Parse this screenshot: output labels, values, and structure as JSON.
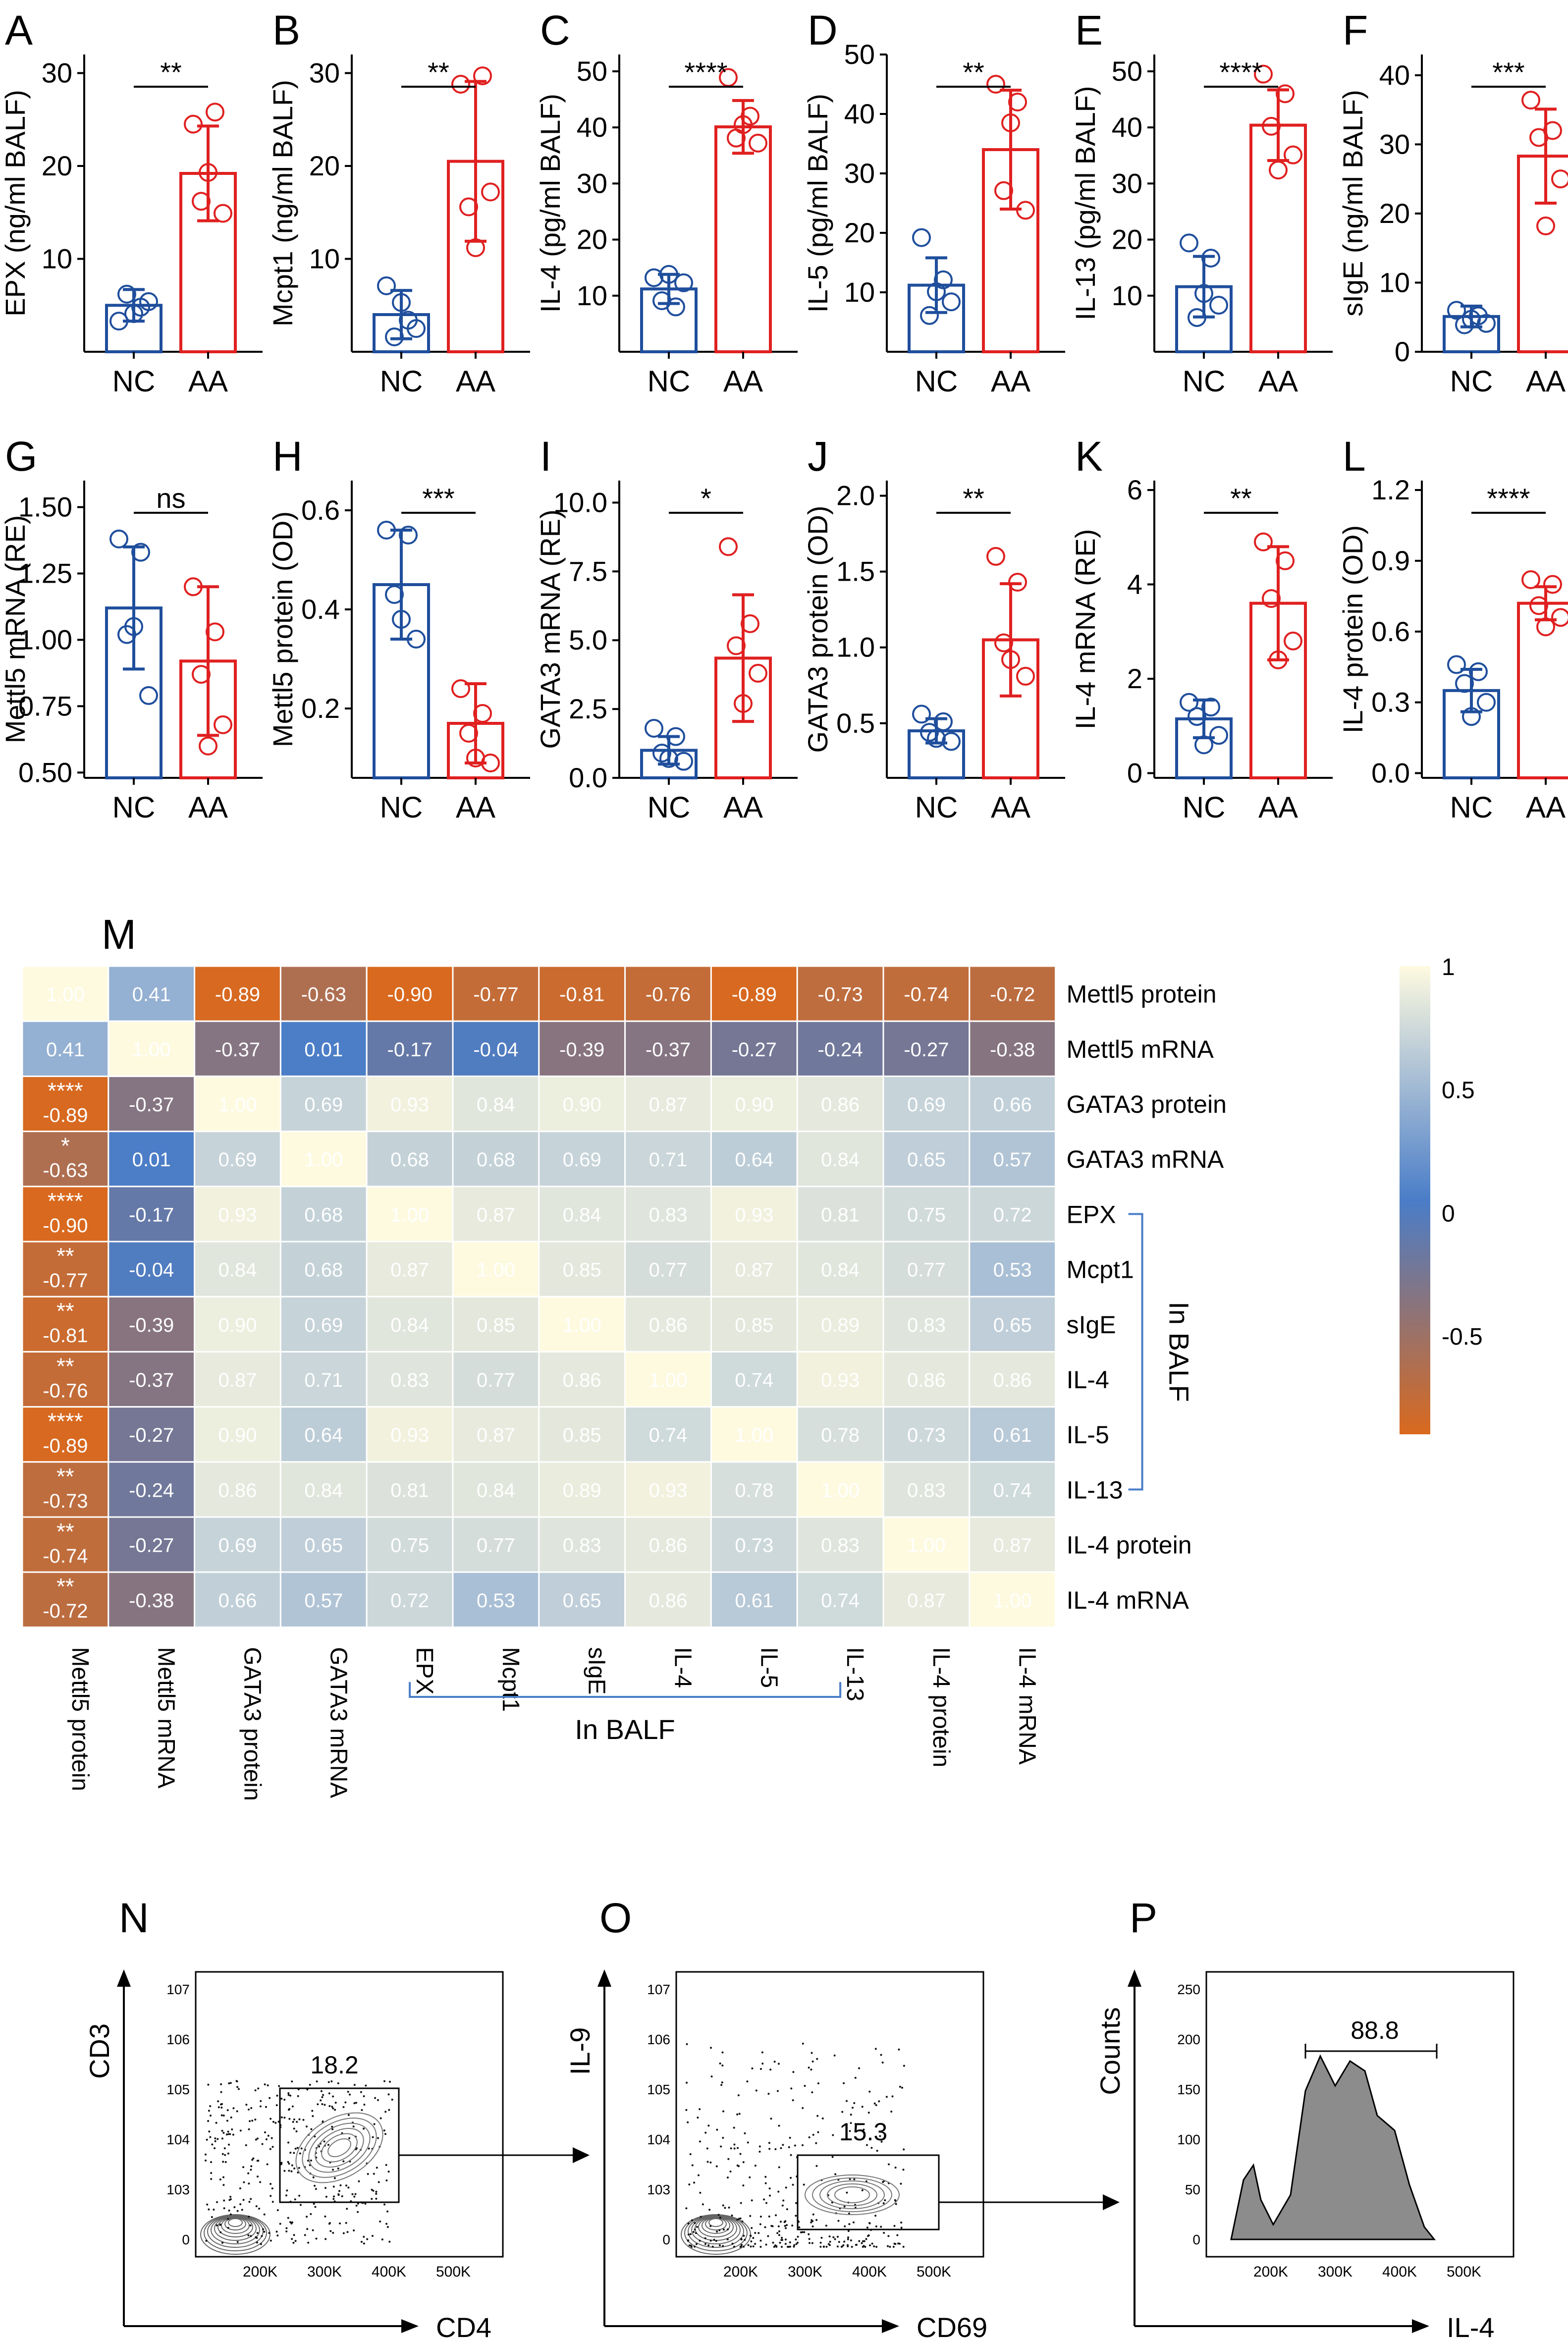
{
  "colors": {
    "nc": "#1f4e9c",
    "aa": "#e02020",
    "axis": "#000000",
    "hm_neg": "#d9691e",
    "hm_mid": "#4a7dc8",
    "hm_pos": "#fefae0",
    "gate_arrow": "#000000"
  },
  "group_labels": [
    "NC",
    "AA"
  ],
  "bar_panels": [
    {
      "letter": "A",
      "ylabel": "EPX (ng/ml BALF)",
      "ylim": [
        0,
        32
      ],
      "ticks": [
        10,
        20,
        30
      ],
      "nc": {
        "mean": 5.0,
        "sd": 1.7,
        "points": [
          3.3,
          4.8,
          6.2,
          5.4,
          4.1
        ]
      },
      "aa": {
        "mean": 19.2,
        "sd": 5.1,
        "points": [
          24.5,
          25.8,
          16.2,
          14.9,
          19.3
        ]
      },
      "sig": "**"
    },
    {
      "letter": "B",
      "ylabel": "Mcpt1 (ng/ml BALF)",
      "ylim": [
        0,
        32
      ],
      "ticks": [
        10,
        20,
        30
      ],
      "nc": {
        "mean": 4.0,
        "sd": 2.6,
        "points": [
          7.1,
          3.4,
          1.6,
          2.5,
          5.3
        ]
      },
      "aa": {
        "mean": 20.5,
        "sd": 8.6,
        "points": [
          28.8,
          29.7,
          15.6,
          17.2,
          11.2
        ]
      },
      "sig": "**"
    },
    {
      "letter": "C",
      "ylabel": "IL-4 (pg/ml BALF)",
      "ylim": [
        0,
        53
      ],
      "ticks": [
        10,
        20,
        30,
        40,
        50
      ],
      "nc": {
        "mean": 11.2,
        "sd": 2.6,
        "points": [
          13.2,
          8.0,
          9.1,
          12.3,
          13.8
        ]
      },
      "aa": {
        "mean": 40.1,
        "sd": 4.7,
        "points": [
          48.9,
          42.0,
          38.1,
          37.2,
          40.5
        ]
      },
      "sig": "****"
    },
    {
      "letter": "D",
      "ylabel": "IL-5 (pg/ml BALF)",
      "ylim": [
        0,
        50
      ],
      "ticks": [
        10,
        20,
        30,
        40,
        50
      ],
      "nc": {
        "mean": 11.2,
        "sd": 4.6,
        "points": [
          19.2,
          12.1,
          6.1,
          8.4,
          10.1
        ]
      },
      "aa": {
        "mean": 34.0,
        "sd": 10.0,
        "points": [
          45.0,
          42.0,
          27.1,
          23.8,
          38.5
        ]
      },
      "sig": "**"
    },
    {
      "letter": "E",
      "ylabel": "IL-13 (pg/ml BALF)",
      "ylim": [
        0,
        53
      ],
      "ticks": [
        10,
        20,
        30,
        40,
        50
      ],
      "nc": {
        "mean": 11.6,
        "sd": 5.4,
        "points": [
          19.4,
          16.7,
          6.1,
          8.3,
          10.4
        ]
      },
      "aa": {
        "mean": 40.4,
        "sd": 6.3,
        "points": [
          49.5,
          46.0,
          40.2,
          35.1,
          32.4
        ]
      },
      "sig": "****"
    },
    {
      "letter": "F",
      "ylabel": "sIgE (ng/ml BALF)",
      "ylim": [
        0,
        43
      ],
      "ticks": [
        0,
        10,
        20,
        30,
        40
      ],
      "nc": {
        "mean": 5.1,
        "sd": 1.5,
        "points": [
          6.0,
          5.2,
          3.9,
          4.1,
          4.7
        ]
      },
      "aa": {
        "mean": 28.3,
        "sd": 6.8,
        "points": [
          36.4,
          32.0,
          31.0,
          25.0,
          18.2
        ]
      },
      "sig": "***"
    },
    {
      "letter": "G",
      "ylabel": "Mettl5 mRNA (RE)",
      "ylim": [
        0.48,
        1.6
      ],
      "ticks": [
        0.5,
        0.75,
        1.0,
        1.25,
        1.5
      ],
      "tick_labels": [
        "0.50",
        "0.75",
        "1.00",
        "1.25",
        "1.50"
      ],
      "nc": {
        "mean": 1.12,
        "sd": 0.23,
        "points": [
          1.38,
          1.33,
          1.02,
          0.79,
          1.05
        ]
      },
      "aa": {
        "mean": 0.92,
        "sd": 0.28,
        "points": [
          1.2,
          1.03,
          0.87,
          0.68,
          0.6
        ]
      },
      "sig": "ns"
    },
    {
      "letter": "H",
      "ylabel": "Mettl5 protein (OD)",
      "ylim": [
        0.06,
        0.66
      ],
      "ticks": [
        0.2,
        0.4,
        0.6
      ],
      "tick_labels": [
        "0.2",
        "0.4",
        "0.6"
      ],
      "nc": {
        "mean": 0.45,
        "sd": 0.11,
        "points": [
          0.56,
          0.55,
          0.43,
          0.34,
          0.38
        ]
      },
      "aa": {
        "mean": 0.17,
        "sd": 0.08,
        "points": [
          0.24,
          0.19,
          0.15,
          0.09,
          0.1
        ]
      },
      "sig": "***"
    },
    {
      "letter": "I",
      "ylabel": "GATA3 mRNA (RE)",
      "ylim": [
        0,
        10.8
      ],
      "ticks": [
        0,
        2.5,
        5.0,
        7.5,
        10.0
      ],
      "tick_labels": [
        "0.0",
        "2.5",
        "5.0",
        "7.5",
        "10.0"
      ],
      "nc": {
        "mean": 1.0,
        "sd": 0.5,
        "points": [
          1.8,
          1.5,
          0.9,
          0.6,
          0.7
        ]
      },
      "aa": {
        "mean": 4.35,
        "sd": 2.3,
        "points": [
          8.4,
          5.6,
          4.8,
          3.8,
          2.7
        ]
      },
      "sig": "*"
    },
    {
      "letter": "J",
      "ylabel": "GATA3 protein (OD)",
      "ylim": [
        0.14,
        2.1
      ],
      "ticks": [
        0.5,
        1.0,
        1.5,
        2.0
      ],
      "tick_labels": [
        "0.5",
        "1.0",
        "1.5",
        "2.0"
      ],
      "nc": {
        "mean": 0.45,
        "sd": 0.08,
        "points": [
          0.56,
          0.51,
          0.44,
          0.38,
          0.4
        ]
      },
      "aa": {
        "mean": 1.05,
        "sd": 0.37,
        "points": [
          1.6,
          1.43,
          1.03,
          0.81,
          0.92
        ]
      },
      "sig": "**"
    },
    {
      "letter": "K",
      "ylabel": "IL-4 mRNA (RE)",
      "ylim": [
        -0.1,
        6.2
      ],
      "ticks": [
        0,
        2,
        4,
        6
      ],
      "tick_labels": [
        "0",
        "2",
        "4",
        "6"
      ],
      "nc": {
        "mean": 1.15,
        "sd": 0.4,
        "points": [
          1.5,
          1.4,
          1.2,
          0.8,
          0.6
        ]
      },
      "aa": {
        "mean": 3.6,
        "sd": 1.2,
        "points": [
          4.9,
          4.5,
          3.7,
          2.8,
          2.4
        ]
      },
      "sig": "**"
    },
    {
      "letter": "L",
      "ylabel": "IL-4 protein (OD)",
      "ylim": [
        -0.02,
        1.24
      ],
      "ticks": [
        0.0,
        0.3,
        0.6,
        0.9,
        1.2
      ],
      "tick_labels": [
        "0.0",
        "0.3",
        "0.6",
        "0.9",
        "1.2"
      ],
      "nc": {
        "mean": 0.35,
        "sd": 0.09,
        "points": [
          0.46,
          0.43,
          0.38,
          0.3,
          0.24
        ]
      },
      "aa": {
        "mean": 0.72,
        "sd": 0.07,
        "points": [
          0.82,
          0.8,
          0.71,
          0.66,
          0.62
        ]
      },
      "sig": "****"
    }
  ],
  "chart_data": {
    "type": "heatmap",
    "title": "M",
    "row_labels": [
      "Mettl5 protein",
      "Mettl5 mRNA",
      "GATA3 protein",
      "GATA3 mRNA",
      "EPX",
      "Mcpt1",
      "sIgE",
      "IL-4",
      "IL-5",
      "IL-13",
      "IL-4 protein",
      "IL-4 mRNA"
    ],
    "col_labels": [
      "Mettl5 protein",
      "Mettl5 mRNA",
      "GATA3 protein",
      "GATA3 mRNA",
      "EPX",
      "Mcpt1",
      "sIgE",
      "IL-4",
      "IL-5",
      "IL-13",
      "IL-4 protein",
      "IL-4 mRNA"
    ],
    "values": [
      [
        "1.00",
        "0.41",
        "-0.89",
        "-0.63",
        "-0.90",
        "-0.77",
        "-0.81",
        "-0.76",
        "-0.89",
        "-0.73",
        "-0.74",
        "-0.72"
      ],
      [
        "0.41",
        "1.00",
        "-0.37",
        "0.01",
        "-0.17",
        "-0.04",
        "-0.39",
        "-0.37",
        "-0.27",
        "-0.24",
        "-0.27",
        "-0.38"
      ],
      [
        "-0.89",
        "-0.37",
        "1.00",
        "0.69",
        "0.93",
        "0.84",
        "0.90",
        "0.87",
        "0.90",
        "0.86",
        "0.69",
        "0.66"
      ],
      [
        "-0.63",
        "0.01",
        "0.69",
        "1.00",
        "0.68",
        "0.68",
        "0.69",
        "0.71",
        "0.64",
        "0.84",
        "0.65",
        "0.57"
      ],
      [
        "-0.90",
        "-0.17",
        "0.93",
        "0.68",
        "1.00",
        "0.87",
        "0.84",
        "0.83",
        "0.93",
        "0.81",
        "0.75",
        "0.72"
      ],
      [
        "-0.77",
        "-0.04",
        "0.84",
        "0.68",
        "0.87",
        "1.00",
        "0.85",
        "0.77",
        "0.87",
        "0.84",
        "0.77",
        "0.53"
      ],
      [
        "-0.81",
        "-0.39",
        "0.90",
        "0.69",
        "0.84",
        "0.85",
        "1.00",
        "0.86",
        "0.85",
        "0.89",
        "0.83",
        "0.65"
      ],
      [
        "-0.76",
        "-0.37",
        "0.87",
        "0.71",
        "0.83",
        "0.77",
        "0.86",
        "1.00",
        "0.74",
        "0.93",
        "0.86",
        "0.86"
      ],
      [
        "-0.89",
        "-0.27",
        "0.90",
        "0.64",
        "0.93",
        "0.87",
        "0.85",
        "0.74",
        "1.00",
        "0.78",
        "0.73",
        "0.61"
      ],
      [
        "-0.73",
        "-0.24",
        "0.86",
        "0.84",
        "0.81",
        "0.84",
        "0.89",
        "0.93",
        "0.78",
        "1.00",
        "0.83",
        "0.74"
      ],
      [
        "-0.74",
        "-0.27",
        "0.69",
        "0.65",
        "0.75",
        "0.77",
        "0.83",
        "0.86",
        "0.73",
        "0.83",
        "1.00",
        "0.87"
      ],
      [
        "-0.72",
        "-0.38",
        "0.66",
        "0.57",
        "0.72",
        "0.53",
        "0.65",
        "0.86",
        "0.61",
        "0.74",
        "0.87",
        "1.00"
      ]
    ],
    "sig_first_col": [
      "",
      "",
      "****",
      "*",
      "****",
      "**",
      "**",
      "**",
      "****",
      "**",
      "**",
      "**"
    ],
    "legend_ticks": [
      "1",
      "0.5",
      "0",
      "-0.5"
    ],
    "range": [
      -0.9,
      1.0
    ],
    "group_label": "In BALF"
  },
  "flow_panels": [
    {
      "letter": "N",
      "xlabel": "CD4",
      "ylabel": "CD3",
      "gate_value": "18.2",
      "x_ticks": [
        "200K",
        "300K",
        "400K",
        "500K"
      ],
      "y_ticks": [
        "0",
        "10^3",
        "10^4",
        "10^5",
        "10^6",
        "10^7"
      ]
    },
    {
      "letter": "O",
      "xlabel": "CD69",
      "ylabel": "IL-9",
      "gate_value": "15.3",
      "x_ticks": [
        "200K",
        "300K",
        "400K",
        "500K"
      ],
      "y_ticks": [
        "0",
        "10^3",
        "10^4",
        "10^5",
        "10^6",
        "10^7"
      ]
    },
    {
      "letter": "P",
      "xlabel": "IL-4",
      "ylabel": "Counts",
      "gate_value": "88.8",
      "x_ticks": [
        "200K",
        "300K",
        "400K",
        "500K"
      ],
      "y_ticks": [
        "0",
        "50",
        "100",
        "150",
        "200",
        "250"
      ]
    }
  ]
}
